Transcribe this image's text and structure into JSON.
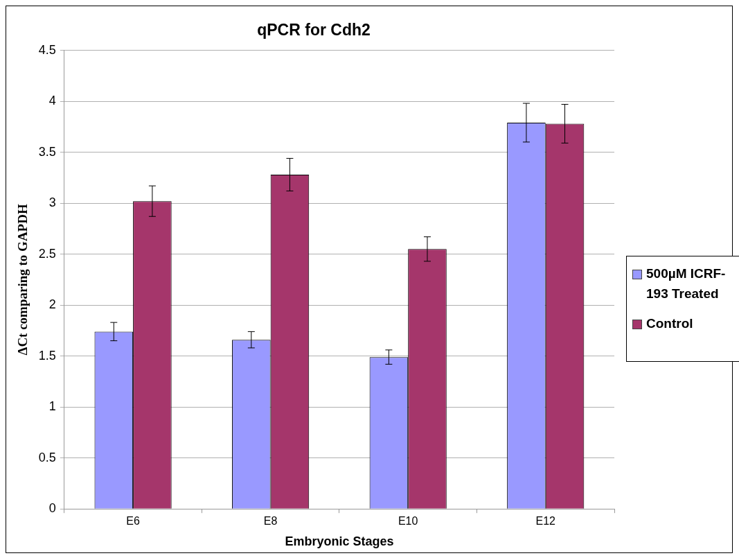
{
  "chart_data": {
    "type": "bar",
    "title": "qPCR for Cdh2",
    "xlabel": "Embryonic Stages",
    "ylabel": "ΔCt comparing to GAPDH",
    "categories": [
      "E6",
      "E8",
      "E10",
      "E12"
    ],
    "series": [
      {
        "name": "500µM ICRF-193 Treated",
        "color": "#9999ff",
        "values": [
          1.74,
          1.66,
          1.49,
          3.79
        ],
        "errors": [
          0.09,
          0.08,
          0.07,
          0.19
        ]
      },
      {
        "name": "Control",
        "color": "#a5366b",
        "values": [
          3.02,
          3.28,
          2.55,
          3.78
        ],
        "errors": [
          0.15,
          0.16,
          0.12,
          0.19
        ]
      }
    ],
    "ylim": [
      0,
      4.5
    ],
    "yticks": [
      0,
      0.5,
      1,
      1.5,
      2,
      2.5,
      3,
      3.5,
      4,
      4.5
    ],
    "grid": "y",
    "legend": "right"
  }
}
